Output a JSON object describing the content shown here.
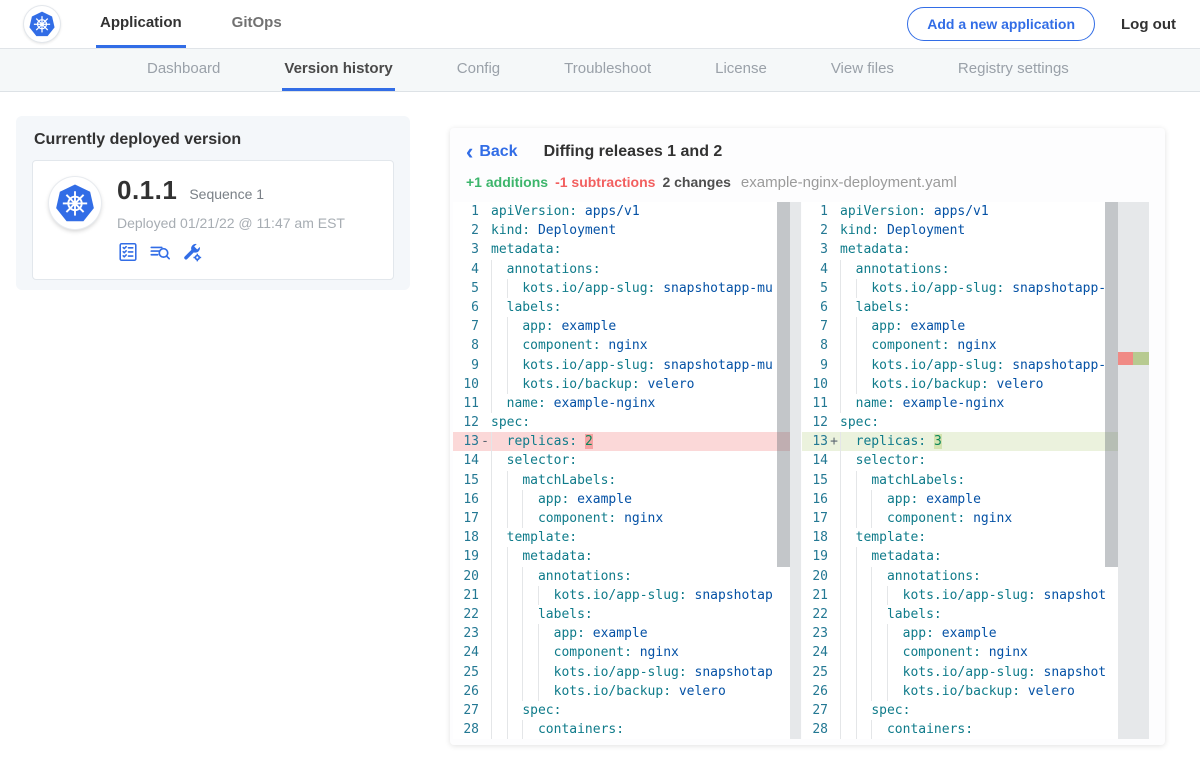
{
  "colors": {
    "accent": "#326de6",
    "add_text": "#3cb56b",
    "sub_text": "#f25f5f",
    "del_row": "#fbd8d8",
    "del_char": "#f5a2a2",
    "add_row": "#ebf2dd",
    "add_char": "#d4e3b0",
    "key": "#0f7b8a",
    "value": "#0451a5",
    "number": "#098658"
  },
  "topnav": {
    "tabs": [
      {
        "label": "Application",
        "active": true
      },
      {
        "label": "GitOps",
        "active": false
      }
    ],
    "add_app_button": "Add a new application",
    "logout": "Log out"
  },
  "subnav": {
    "items": [
      {
        "label": "Dashboard",
        "active": false
      },
      {
        "label": "Version history",
        "active": true
      },
      {
        "label": "Config",
        "active": false
      },
      {
        "label": "Troubleshoot",
        "active": false
      },
      {
        "label": "License",
        "active": false
      },
      {
        "label": "View files",
        "active": false
      },
      {
        "label": "Registry settings",
        "active": false
      }
    ]
  },
  "deployed_card": {
    "title": "Currently deployed version",
    "version": "0.1.1",
    "sequence": "Sequence 1",
    "deployed": "Deployed 01/21/22 @ 11:47 am EST",
    "action_icons": [
      "release-notes-icon",
      "preflight-results-icon",
      "configure-icon"
    ]
  },
  "diff": {
    "back_label": "Back",
    "title": "Diffing releases 1 and 2",
    "stats": {
      "additions": "+1 additions",
      "subtractions": "-1 subtractions",
      "changes": "2 changes",
      "filename": "example-nginx-deployment.yaml"
    },
    "left_lines": [
      {
        "n": 1,
        "i": 0,
        "k": "apiVersion",
        "v": "apps/v1"
      },
      {
        "n": 2,
        "i": 0,
        "k": "kind",
        "v": "Deployment"
      },
      {
        "n": 3,
        "i": 0,
        "k": "metadata"
      },
      {
        "n": 4,
        "i": 2,
        "k": "annotations"
      },
      {
        "n": 5,
        "i": 4,
        "k": "kots.io/app-slug",
        "v": "snapshotapp-mu"
      },
      {
        "n": 6,
        "i": 2,
        "k": "labels"
      },
      {
        "n": 7,
        "i": 4,
        "k": "app",
        "v": "example"
      },
      {
        "n": 8,
        "i": 4,
        "k": "component",
        "v": "nginx"
      },
      {
        "n": 9,
        "i": 4,
        "k": "kots.io/app-slug",
        "v": "snapshotapp-mu"
      },
      {
        "n": 10,
        "i": 4,
        "k": "kots.io/backup",
        "v": "velero"
      },
      {
        "n": 11,
        "i": 2,
        "k": "name",
        "v": "example-nginx"
      },
      {
        "n": 12,
        "i": 0,
        "k": "spec"
      },
      {
        "n": 13,
        "i": 2,
        "k": "replicas",
        "v": "2",
        "vt": "num",
        "mark": "del"
      },
      {
        "n": 14,
        "i": 2,
        "k": "selector"
      },
      {
        "n": 15,
        "i": 4,
        "k": "matchLabels"
      },
      {
        "n": 16,
        "i": 6,
        "k": "app",
        "v": "example"
      },
      {
        "n": 17,
        "i": 6,
        "k": "component",
        "v": "nginx"
      },
      {
        "n": 18,
        "i": 2,
        "k": "template"
      },
      {
        "n": 19,
        "i": 4,
        "k": "metadata"
      },
      {
        "n": 20,
        "i": 6,
        "k": "annotations"
      },
      {
        "n": 21,
        "i": 8,
        "k": "kots.io/app-slug",
        "v": "snapshotap"
      },
      {
        "n": 22,
        "i": 6,
        "k": "labels"
      },
      {
        "n": 23,
        "i": 8,
        "k": "app",
        "v": "example"
      },
      {
        "n": 24,
        "i": 8,
        "k": "component",
        "v": "nginx"
      },
      {
        "n": 25,
        "i": 8,
        "k": "kots.io/app-slug",
        "v": "snapshotap"
      },
      {
        "n": 26,
        "i": 8,
        "k": "kots.io/backup",
        "v": "velero"
      },
      {
        "n": 27,
        "i": 4,
        "k": "spec"
      },
      {
        "n": 28,
        "i": 6,
        "k": "containers"
      }
    ],
    "right_lines": [
      {
        "n": 1,
        "i": 0,
        "k": "apiVersion",
        "v": "apps/v1"
      },
      {
        "n": 2,
        "i": 0,
        "k": "kind",
        "v": "Deployment"
      },
      {
        "n": 3,
        "i": 0,
        "k": "metadata"
      },
      {
        "n": 4,
        "i": 2,
        "k": "annotations"
      },
      {
        "n": 5,
        "i": 4,
        "k": "kots.io/app-slug",
        "v": "snapshotapp-mu"
      },
      {
        "n": 6,
        "i": 2,
        "k": "labels"
      },
      {
        "n": 7,
        "i": 4,
        "k": "app",
        "v": "example"
      },
      {
        "n": 8,
        "i": 4,
        "k": "component",
        "v": "nginx"
      },
      {
        "n": 9,
        "i": 4,
        "k": "kots.io/app-slug",
        "v": "snapshotapp-mu"
      },
      {
        "n": 10,
        "i": 4,
        "k": "kots.io/backup",
        "v": "velero"
      },
      {
        "n": 11,
        "i": 2,
        "k": "name",
        "v": "example-nginx"
      },
      {
        "n": 12,
        "i": 0,
        "k": "spec"
      },
      {
        "n": 13,
        "i": 2,
        "k": "replicas",
        "v": "3",
        "vt": "num",
        "mark": "add"
      },
      {
        "n": 14,
        "i": 2,
        "k": "selector"
      },
      {
        "n": 15,
        "i": 4,
        "k": "matchLabels"
      },
      {
        "n": 16,
        "i": 6,
        "k": "app",
        "v": "example"
      },
      {
        "n": 17,
        "i": 6,
        "k": "component",
        "v": "nginx"
      },
      {
        "n": 18,
        "i": 2,
        "k": "template"
      },
      {
        "n": 19,
        "i": 4,
        "k": "metadata"
      },
      {
        "n": 20,
        "i": 6,
        "k": "annotations"
      },
      {
        "n": 21,
        "i": 8,
        "k": "kots.io/app-slug",
        "v": "snapshotap"
      },
      {
        "n": 22,
        "i": 6,
        "k": "labels"
      },
      {
        "n": 23,
        "i": 8,
        "k": "app",
        "v": "example"
      },
      {
        "n": 24,
        "i": 8,
        "k": "component",
        "v": "nginx"
      },
      {
        "n": 25,
        "i": 8,
        "k": "kots.io/app-slug",
        "v": "snapshotap"
      },
      {
        "n": 26,
        "i": 8,
        "k": "kots.io/backup",
        "v": "velero"
      },
      {
        "n": 27,
        "i": 4,
        "k": "spec"
      },
      {
        "n": 28,
        "i": 6,
        "k": "containers"
      }
    ]
  }
}
